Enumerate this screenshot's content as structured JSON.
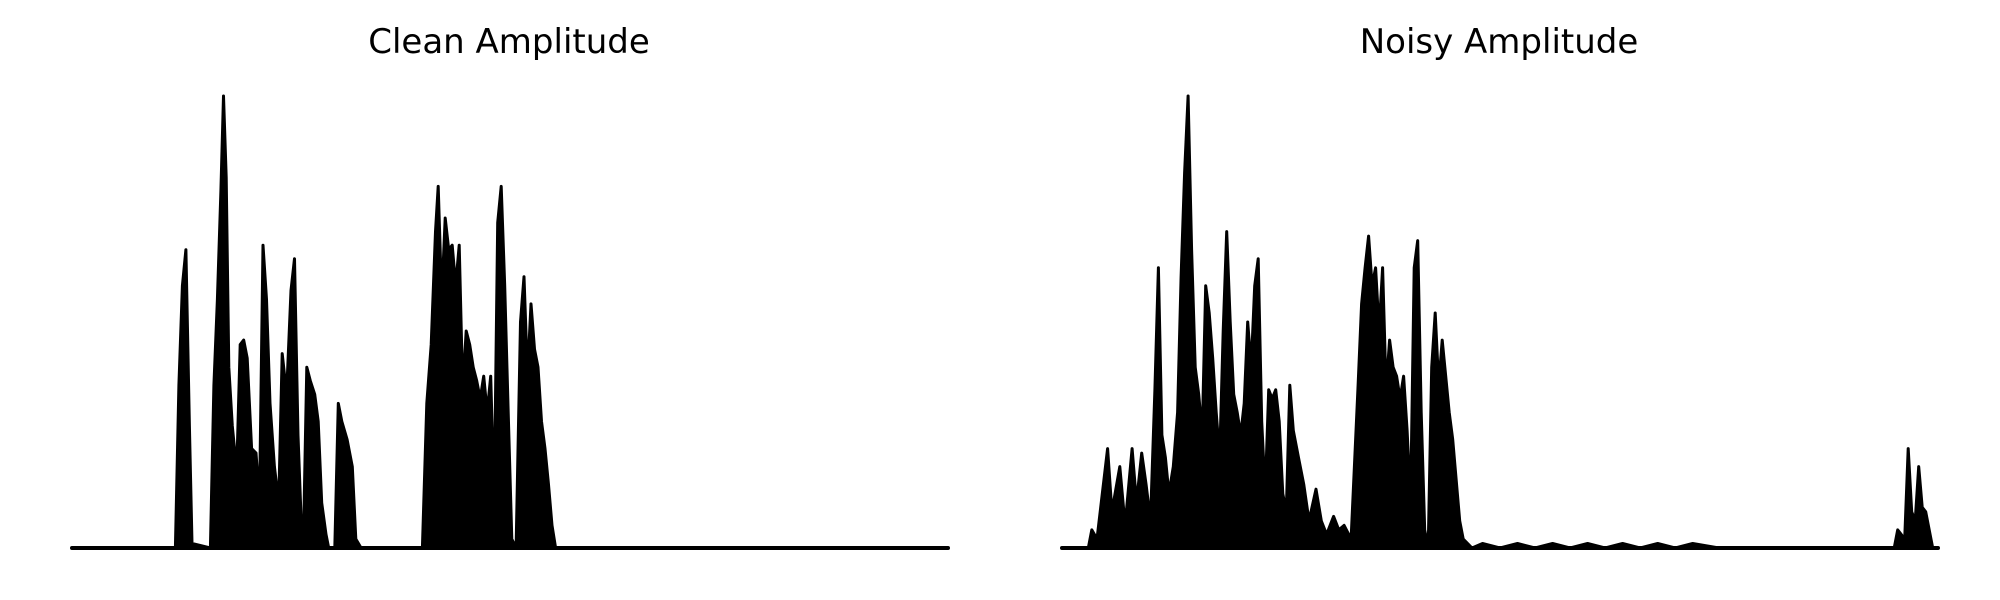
{
  "colors": {
    "background": "#ffffff",
    "waveform": "#000000"
  },
  "chart_data": [
    {
      "type": "area",
      "title": "Clean Amplitude",
      "xlabel": "",
      "ylabel": "",
      "axes_visible": false,
      "grid": false,
      "xlim": [
        0,
        1
      ],
      "ylim": [
        0,
        1
      ],
      "envelope": [
        [
          0.0,
          0.0
        ],
        [
          0.118,
          0.0
        ],
        [
          0.122,
          0.36
        ],
        [
          0.126,
          0.58
        ],
        [
          0.13,
          0.66
        ],
        [
          0.134,
          0.27
        ],
        [
          0.137,
          0.01
        ],
        [
          0.158,
          0.0
        ],
        [
          0.162,
          0.36
        ],
        [
          0.166,
          0.55
        ],
        [
          0.17,
          0.79
        ],
        [
          0.173,
          1.0
        ],
        [
          0.176,
          0.82
        ],
        [
          0.179,
          0.4
        ],
        [
          0.183,
          0.27
        ],
        [
          0.188,
          0.17
        ],
        [
          0.192,
          0.45
        ],
        [
          0.196,
          0.46
        ],
        [
          0.2,
          0.42
        ],
        [
          0.205,
          0.22
        ],
        [
          0.21,
          0.21
        ],
        [
          0.214,
          0.1
        ],
        [
          0.218,
          0.67
        ],
        [
          0.222,
          0.55
        ],
        [
          0.226,
          0.32
        ],
        [
          0.231,
          0.18
        ],
        [
          0.236,
          0.1
        ],
        [
          0.24,
          0.43
        ],
        [
          0.245,
          0.34
        ],
        [
          0.25,
          0.57
        ],
        [
          0.254,
          0.64
        ],
        [
          0.258,
          0.25
        ],
        [
          0.262,
          0.04
        ],
        [
          0.264,
          0.0
        ],
        [
          0.268,
          0.4
        ],
        [
          0.272,
          0.37
        ],
        [
          0.277,
          0.34
        ],
        [
          0.281,
          0.28
        ],
        [
          0.285,
          0.1
        ],
        [
          0.29,
          0.03
        ],
        [
          0.293,
          0.0
        ],
        [
          0.3,
          0.0
        ],
        [
          0.304,
          0.32
        ],
        [
          0.308,
          0.28
        ],
        [
          0.314,
          0.24
        ],
        [
          0.32,
          0.18
        ],
        [
          0.324,
          0.02
        ],
        [
          0.33,
          0.0
        ],
        [
          0.4,
          0.0
        ],
        [
          0.405,
          0.32
        ],
        [
          0.41,
          0.45
        ],
        [
          0.415,
          0.7
        ],
        [
          0.418,
          0.8
        ],
        [
          0.422,
          0.55
        ],
        [
          0.426,
          0.73
        ],
        [
          0.43,
          0.66
        ],
        [
          0.434,
          0.67
        ],
        [
          0.438,
          0.58
        ],
        [
          0.442,
          0.67
        ],
        [
          0.446,
          0.35
        ],
        [
          0.45,
          0.48
        ],
        [
          0.454,
          0.45
        ],
        [
          0.458,
          0.4
        ],
        [
          0.462,
          0.37
        ],
        [
          0.466,
          0.33
        ],
        [
          0.47,
          0.38
        ],
        [
          0.474,
          0.3
        ],
        [
          0.478,
          0.38
        ],
        [
          0.482,
          0.1
        ],
        [
          0.486,
          0.72
        ],
        [
          0.49,
          0.8
        ],
        [
          0.494,
          0.58
        ],
        [
          0.498,
          0.3
        ],
        [
          0.502,
          0.02
        ],
        [
          0.507,
          0.0
        ],
        [
          0.512,
          0.5
        ],
        [
          0.516,
          0.6
        ],
        [
          0.52,
          0.38
        ],
        [
          0.524,
          0.54
        ],
        [
          0.528,
          0.44
        ],
        [
          0.532,
          0.4
        ],
        [
          0.536,
          0.28
        ],
        [
          0.54,
          0.22
        ],
        [
          0.544,
          0.14
        ],
        [
          0.548,
          0.05
        ],
        [
          0.552,
          0.0
        ],
        [
          1.0,
          0.0
        ]
      ]
    },
    {
      "type": "area",
      "title": "Noisy Amplitude",
      "xlabel": "",
      "ylabel": "",
      "axes_visible": false,
      "grid": false,
      "xlim": [
        0,
        1
      ],
      "ylim": [
        0,
        1
      ],
      "envelope": [
        [
          0.0,
          0.0
        ],
        [
          0.03,
          0.0
        ],
        [
          0.034,
          0.04
        ],
        [
          0.04,
          0.02
        ],
        [
          0.052,
          0.22
        ],
        [
          0.057,
          0.08
        ],
        [
          0.066,
          0.18
        ],
        [
          0.072,
          0.05
        ],
        [
          0.08,
          0.22
        ],
        [
          0.085,
          0.1
        ],
        [
          0.091,
          0.21
        ],
        [
          0.096,
          0.14
        ],
        [
          0.101,
          0.06
        ],
        [
          0.106,
          0.35
        ],
        [
          0.11,
          0.62
        ],
        [
          0.114,
          0.25
        ],
        [
          0.118,
          0.2
        ],
        [
          0.122,
          0.12
        ],
        [
          0.127,
          0.18
        ],
        [
          0.132,
          0.3
        ],
        [
          0.136,
          0.6
        ],
        [
          0.14,
          0.83
        ],
        [
          0.144,
          1.0
        ],
        [
          0.148,
          0.66
        ],
        [
          0.152,
          0.4
        ],
        [
          0.156,
          0.34
        ],
        [
          0.16,
          0.25
        ],
        [
          0.164,
          0.58
        ],
        [
          0.168,
          0.52
        ],
        [
          0.172,
          0.42
        ],
        [
          0.176,
          0.3
        ],
        [
          0.18,
          0.2
        ],
        [
          0.184,
          0.48
        ],
        [
          0.188,
          0.7
        ],
        [
          0.192,
          0.5
        ],
        [
          0.196,
          0.34
        ],
        [
          0.2,
          0.3
        ],
        [
          0.204,
          0.25
        ],
        [
          0.208,
          0.32
        ],
        [
          0.212,
          0.5
        ],
        [
          0.216,
          0.4
        ],
        [
          0.22,
          0.58
        ],
        [
          0.224,
          0.64
        ],
        [
          0.228,
          0.28
        ],
        [
          0.232,
          0.12
        ],
        [
          0.236,
          0.35
        ],
        [
          0.24,
          0.33
        ],
        [
          0.244,
          0.35
        ],
        [
          0.248,
          0.28
        ],
        [
          0.252,
          0.12
        ],
        [
          0.256,
          0.08
        ],
        [
          0.26,
          0.36
        ],
        [
          0.264,
          0.26
        ],
        [
          0.27,
          0.2
        ],
        [
          0.276,
          0.14
        ],
        [
          0.282,
          0.06
        ],
        [
          0.29,
          0.13
        ],
        [
          0.296,
          0.06
        ],
        [
          0.302,
          0.03
        ],
        [
          0.31,
          0.07
        ],
        [
          0.316,
          0.04
        ],
        [
          0.322,
          0.05
        ],
        [
          0.33,
          0.02
        ],
        [
          0.338,
          0.36
        ],
        [
          0.342,
          0.54
        ],
        [
          0.346,
          0.62
        ],
        [
          0.35,
          0.69
        ],
        [
          0.354,
          0.58
        ],
        [
          0.358,
          0.62
        ],
        [
          0.362,
          0.48
        ],
        [
          0.366,
          0.62
        ],
        [
          0.37,
          0.35
        ],
        [
          0.374,
          0.46
        ],
        [
          0.378,
          0.4
        ],
        [
          0.382,
          0.38
        ],
        [
          0.386,
          0.33
        ],
        [
          0.39,
          0.38
        ],
        [
          0.394,
          0.26
        ],
        [
          0.398,
          0.1
        ],
        [
          0.402,
          0.62
        ],
        [
          0.406,
          0.68
        ],
        [
          0.41,
          0.3
        ],
        [
          0.414,
          0.04
        ],
        [
          0.418,
          0.0
        ],
        [
          0.422,
          0.4
        ],
        [
          0.426,
          0.52
        ],
        [
          0.43,
          0.36
        ],
        [
          0.434,
          0.46
        ],
        [
          0.438,
          0.38
        ],
        [
          0.442,
          0.3
        ],
        [
          0.446,
          0.24
        ],
        [
          0.45,
          0.15
        ],
        [
          0.454,
          0.06
        ],
        [
          0.458,
          0.02
        ],
        [
          0.468,
          0.0
        ],
        [
          0.48,
          0.01
        ],
        [
          0.5,
          0.0
        ],
        [
          0.52,
          0.01
        ],
        [
          0.54,
          0.0
        ],
        [
          0.56,
          0.01
        ],
        [
          0.58,
          0.0
        ],
        [
          0.6,
          0.01
        ],
        [
          0.62,
          0.0
        ],
        [
          0.64,
          0.01
        ],
        [
          0.66,
          0.0
        ],
        [
          0.68,
          0.01
        ],
        [
          0.7,
          0.0
        ],
        [
          0.72,
          0.01
        ],
        [
          0.75,
          0.0
        ],
        [
          0.78,
          0.0
        ],
        [
          0.9,
          0.0
        ],
        [
          0.95,
          0.0
        ],
        [
          0.954,
          0.04
        ],
        [
          0.958,
          0.03
        ],
        [
          0.962,
          0.02
        ],
        [
          0.966,
          0.22
        ],
        [
          0.97,
          0.08
        ],
        [
          0.974,
          0.06
        ],
        [
          0.978,
          0.18
        ],
        [
          0.982,
          0.09
        ],
        [
          0.986,
          0.08
        ],
        [
          0.99,
          0.04
        ],
        [
          0.994,
          0.0
        ],
        [
          1.0,
          0.0
        ]
      ]
    }
  ]
}
